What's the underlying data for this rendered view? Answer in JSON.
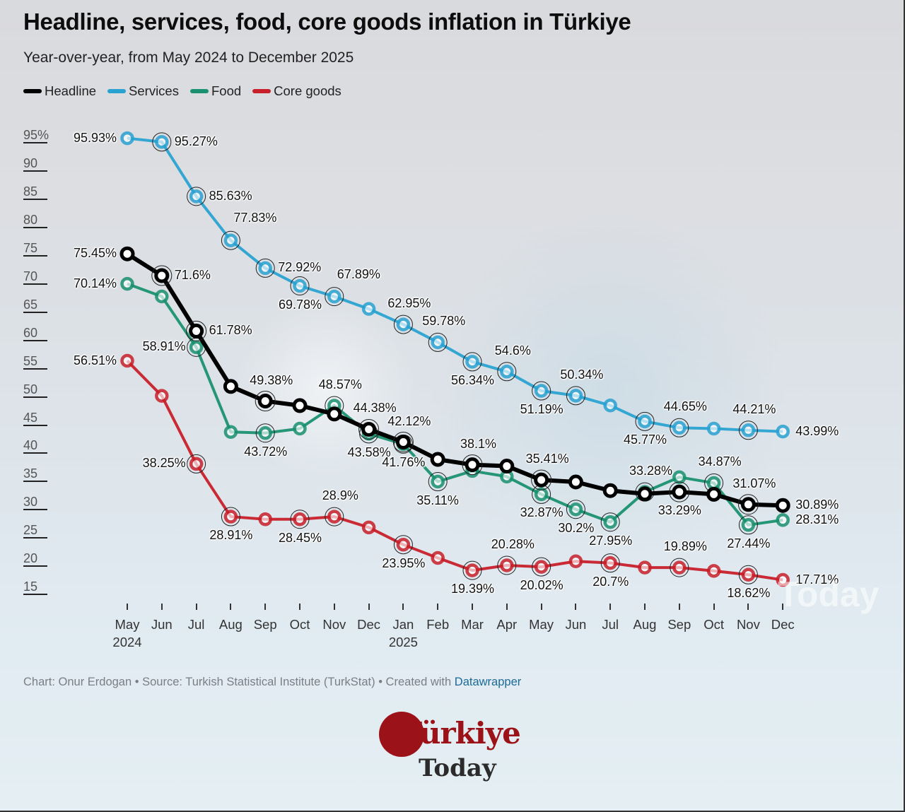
{
  "header": {
    "title": "Headline, services, food, core goods inflation in Türkiye",
    "subtitle": "Year-over-year, from May 2024 to December 2025"
  },
  "legend": [
    {
      "label": "Headline",
      "color": "#000000"
    },
    {
      "label": "Services",
      "color": "#2aa2d1"
    },
    {
      "label": "Food",
      "color": "#1a9170"
    },
    {
      "label": "Core goods",
      "color": "#c8202a"
    }
  ],
  "yaxis": {
    "ticks": [
      "95%",
      "90",
      "85",
      "80",
      "75",
      "70",
      "65",
      "60",
      "55",
      "50",
      "45",
      "40",
      "35",
      "30",
      "25",
      "20",
      "15"
    ]
  },
  "xaxis": {
    "months": [
      "May",
      "Jun",
      "Jul",
      "Aug",
      "Sep",
      "Oct",
      "Nov",
      "Dec",
      "Jan",
      "Feb",
      "Mar",
      "Apr",
      "May",
      "Jun",
      "Jul",
      "Aug",
      "Sep",
      "Oct",
      "Nov",
      "Dec"
    ],
    "years": {
      "0": "2024",
      "8": "2025"
    }
  },
  "footer": {
    "text": "Chart: Onur Erdogan • Source: Turkish Statistical Institute (TurkStat) • Created with ",
    "link": "Datawrapper"
  },
  "logo": {
    "brand_line1": "Türkiye",
    "brand_line2": "Today",
    "watermark": "Today"
  },
  "chart_data": {
    "type": "line",
    "title": "Headline, services, food, core goods inflation in Türkiye",
    "subtitle": "Year-over-year, from May 2024 to December 2025",
    "xlabel": "",
    "ylabel": "",
    "ylim": [
      15,
      95
    ],
    "y_ticks": [
      15,
      20,
      25,
      30,
      35,
      40,
      45,
      50,
      55,
      60,
      65,
      70,
      75,
      80,
      85,
      90,
      95
    ],
    "grid": false,
    "legend_position": "top-left",
    "x": [
      "May 2024",
      "Jun 2024",
      "Jul 2024",
      "Aug 2024",
      "Sep 2024",
      "Oct 2024",
      "Nov 2024",
      "Dec 2024",
      "Jan 2025",
      "Feb 2025",
      "Mar 2025",
      "Apr 2025",
      "May 2025",
      "Jun 2025",
      "Jul 2025",
      "Aug 2025",
      "Sep 2025",
      "Oct 2025",
      "Nov 2025",
      "Dec 2025"
    ],
    "series": [
      {
        "name": "Headline",
        "color": "#000000",
        "values": [
          75.45,
          71.6,
          61.78,
          51.97,
          49.38,
          48.58,
          47.09,
          44.38,
          42.12,
          39.05,
          38.1,
          37.86,
          35.41,
          35.05,
          33.52,
          32.95,
          33.29,
          32.87,
          31.07,
          30.89
        ]
      },
      {
        "name": "Services",
        "color": "#2aa2d1",
        "values": [
          95.93,
          95.27,
          85.63,
          77.83,
          72.92,
          69.78,
          67.89,
          65.7,
          62.95,
          59.78,
          56.34,
          54.6,
          51.19,
          50.34,
          48.6,
          45.77,
          44.65,
          44.5,
          44.21,
          43.99
        ]
      },
      {
        "name": "Food",
        "color": "#1a9170",
        "values": [
          70.14,
          67.9,
          58.91,
          43.9,
          43.72,
          44.5,
          48.57,
          43.58,
          41.76,
          35.11,
          37.0,
          36.0,
          32.87,
          30.2,
          27.95,
          33.28,
          35.9,
          34.87,
          27.44,
          28.31
        ]
      },
      {
        "name": "Core goods",
        "color": "#c8202a",
        "values": [
          56.51,
          50.3,
          38.25,
          28.91,
          28.45,
          28.45,
          28.9,
          27.0,
          23.95,
          21.6,
          19.39,
          20.28,
          20.02,
          21.0,
          20.7,
          19.89,
          19.89,
          19.3,
          18.62,
          17.71
        ]
      }
    ],
    "annotations": [
      {
        "series": "Services",
        "index": 0,
        "text": "95.93%",
        "pos": "left"
      },
      {
        "series": "Services",
        "index": 1,
        "text": "95.27%",
        "pos": "right"
      },
      {
        "series": "Services",
        "index": 2,
        "text": "85.63%",
        "pos": "right"
      },
      {
        "series": "Services",
        "index": 3,
        "text": "77.83%",
        "pos": "above-right"
      },
      {
        "series": "Services",
        "index": 4,
        "text": "72.92%",
        "pos": "right"
      },
      {
        "series": "Services",
        "index": 5,
        "text": "69.78%",
        "pos": "below"
      },
      {
        "series": "Services",
        "index": 6,
        "text": "67.89%",
        "pos": "above-right"
      },
      {
        "series": "Services",
        "index": 8,
        "text": "62.95%",
        "pos": "above"
      },
      {
        "series": "Services",
        "index": 9,
        "text": "59.78%",
        "pos": "above"
      },
      {
        "series": "Services",
        "index": 10,
        "text": "56.34%",
        "pos": "below"
      },
      {
        "series": "Services",
        "index": 11,
        "text": "54.6%",
        "pos": "above"
      },
      {
        "series": "Services",
        "index": 12,
        "text": "51.19%",
        "pos": "below"
      },
      {
        "series": "Services",
        "index": 13,
        "text": "50.34%",
        "pos": "above"
      },
      {
        "series": "Services",
        "index": 15,
        "text": "45.77%",
        "pos": "below"
      },
      {
        "series": "Services",
        "index": 16,
        "text": "44.65%",
        "pos": "above"
      },
      {
        "series": "Services",
        "index": 18,
        "text": "44.21%",
        "pos": "above"
      },
      {
        "series": "Services",
        "index": 19,
        "text": "43.99%",
        "pos": "right"
      },
      {
        "series": "Headline",
        "index": 0,
        "text": "75.45%",
        "pos": "left"
      },
      {
        "series": "Headline",
        "index": 1,
        "text": "71.6%",
        "pos": "right"
      },
      {
        "series": "Headline",
        "index": 2,
        "text": "61.78%",
        "pos": "right"
      },
      {
        "series": "Headline",
        "index": 4,
        "text": "49.38%",
        "pos": "above"
      },
      {
        "series": "Headline",
        "index": 7,
        "text": "44.38%",
        "pos": "above"
      },
      {
        "series": "Headline",
        "index": 8,
        "text": "42.12%",
        "pos": "above"
      },
      {
        "series": "Headline",
        "index": 10,
        "text": "38.1%",
        "pos": "above"
      },
      {
        "series": "Headline",
        "index": 12,
        "text": "35.41%",
        "pos": "above"
      },
      {
        "series": "Headline",
        "index": 16,
        "text": "33.29%",
        "pos": "below"
      },
      {
        "series": "Headline",
        "index": 18,
        "text": "31.07%",
        "pos": "above"
      },
      {
        "series": "Headline",
        "index": 19,
        "text": "30.89%",
        "pos": "right"
      },
      {
        "series": "Food",
        "index": 0,
        "text": "70.14%",
        "pos": "left"
      },
      {
        "series": "Food",
        "index": 2,
        "text": "58.91%",
        "pos": "left"
      },
      {
        "series": "Food",
        "index": 4,
        "text": "43.72%",
        "pos": "below"
      },
      {
        "series": "Food",
        "index": 6,
        "text": "48.57%",
        "pos": "above"
      },
      {
        "series": "Food",
        "index": 7,
        "text": "43.58%",
        "pos": "below"
      },
      {
        "series": "Food",
        "index": 8,
        "text": "41.76%",
        "pos": "below"
      },
      {
        "series": "Food",
        "index": 9,
        "text": "35.11%",
        "pos": "below"
      },
      {
        "series": "Food",
        "index": 12,
        "text": "32.87%",
        "pos": "below"
      },
      {
        "series": "Food",
        "index": 13,
        "text": "30.2%",
        "pos": "below"
      },
      {
        "series": "Food",
        "index": 14,
        "text": "27.95%",
        "pos": "below"
      },
      {
        "series": "Food",
        "index": 15,
        "text": "33.28%",
        "pos": "above"
      },
      {
        "series": "Food",
        "index": 17,
        "text": "34.87%",
        "pos": "above"
      },
      {
        "series": "Food",
        "index": 18,
        "text": "27.44%",
        "pos": "below"
      },
      {
        "series": "Food",
        "index": 19,
        "text": "28.31%",
        "pos": "right"
      },
      {
        "series": "Core goods",
        "index": 0,
        "text": "56.51%",
        "pos": "left"
      },
      {
        "series": "Core goods",
        "index": 2,
        "text": "38.25%",
        "pos": "left"
      },
      {
        "series": "Core goods",
        "index": 3,
        "text": "28.91%",
        "pos": "below"
      },
      {
        "series": "Core goods",
        "index": 5,
        "text": "28.45%",
        "pos": "below"
      },
      {
        "series": "Core goods",
        "index": 6,
        "text": "28.9%",
        "pos": "above"
      },
      {
        "series": "Core goods",
        "index": 8,
        "text": "23.95%",
        "pos": "below"
      },
      {
        "series": "Core goods",
        "index": 10,
        "text": "19.39%",
        "pos": "below"
      },
      {
        "series": "Core goods",
        "index": 11,
        "text": "20.28%",
        "pos": "above"
      },
      {
        "series": "Core goods",
        "index": 12,
        "text": "20.02%",
        "pos": "below"
      },
      {
        "series": "Core goods",
        "index": 14,
        "text": "20.7%",
        "pos": "below"
      },
      {
        "series": "Core goods",
        "index": 16,
        "text": "19.89%",
        "pos": "above"
      },
      {
        "series": "Core goods",
        "index": 18,
        "text": "18.62%",
        "pos": "below"
      },
      {
        "series": "Core goods",
        "index": 19,
        "text": "17.71%",
        "pos": "right"
      }
    ]
  }
}
